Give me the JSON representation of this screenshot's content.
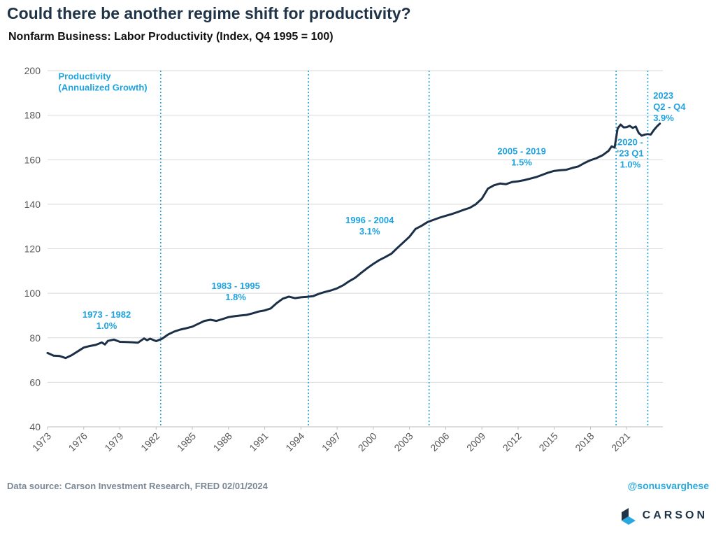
{
  "header": {
    "title": "Could there be another regime shift for productivity?",
    "subtitle": "Nonfarm Business: Labor Productivity (Index, Q4 1995 = 100)"
  },
  "footer": {
    "source": "Data source: Carson Investment Research, FRED   02/01/2024",
    "handle": "@sonusvarghese",
    "logo_text": "CARSON"
  },
  "colors": {
    "line": "#1b3048",
    "annotation": "#1fa3df",
    "grid": "#d9d9d9",
    "axis_text": "#595959"
  },
  "chart_data": {
    "type": "line",
    "ylim": [
      40,
      200
    ],
    "yticks": [
      40,
      60,
      80,
      100,
      120,
      140,
      160,
      180,
      200
    ],
    "xlim": [
      1973.0,
      2024.0
    ],
    "xticks": [
      "1973",
      "1976",
      "1979",
      "1982",
      "1985",
      "1988",
      "1991",
      "1994",
      "1997",
      "2000",
      "2003",
      "2006",
      "2009",
      "2012",
      "2015",
      "2018",
      "2021"
    ],
    "grid": "horizontal",
    "series": [
      {
        "x": [
          1973.0,
          1973.5,
          1974.0,
          1974.5,
          1975.0,
          1975.5,
          1976.0,
          1976.5,
          1977.0,
          1977.5,
          1977.75,
          1978.0,
          1978.5,
          1979.0,
          1979.5,
          1980.0,
          1980.5,
          1981.0,
          1981.25,
          1981.5,
          1982.0,
          1982.5,
          1983.0,
          1983.5,
          1984.0,
          1984.5,
          1985.0,
          1985.5,
          1986.0,
          1986.5,
          1987.0,
          1987.5,
          1988.0,
          1988.5,
          1989.0,
          1989.5,
          1990.0,
          1990.5,
          1991.0,
          1991.5,
          1992.0,
          1992.5,
          1993.0,
          1993.5,
          1994.0,
          1994.5,
          1995.0,
          1995.5,
          1996.0,
          1996.5,
          1997.0,
          1997.5,
          1998.0,
          1998.5,
          1999.0,
          1999.5,
          2000.0,
          2000.5,
          2001.0,
          2001.5,
          2002.0,
          2002.5,
          2003.0,
          2003.5,
          2004.0,
          2004.5,
          2005.0,
          2005.5,
          2006.0,
          2006.5,
          2007.0,
          2007.5,
          2008.0,
          2008.5,
          2009.0,
          2009.5,
          2010.0,
          2010.5,
          2011.0,
          2011.5,
          2012.0,
          2012.5,
          2013.0,
          2013.5,
          2014.0,
          2014.5,
          2015.0,
          2015.5,
          2016.0,
          2016.5,
          2017.0,
          2017.5,
          2018.0,
          2018.5,
          2019.0,
          2019.5,
          2019.75,
          2020.0,
          2020.25,
          2020.5,
          2020.75,
          2021.0,
          2021.25,
          2021.5,
          2021.75,
          2022.0,
          2022.25,
          2022.5,
          2022.75,
          2023.0,
          2023.25,
          2023.5,
          2023.75
        ],
        "y": [
          73.2,
          72.0,
          71.8,
          70.9,
          72.2,
          73.9,
          75.6,
          76.3,
          76.8,
          77.9,
          77.0,
          78.6,
          79.2,
          78.2,
          78.1,
          78.0,
          77.8,
          79.7,
          78.9,
          79.6,
          78.5,
          79.6,
          81.5,
          82.8,
          83.7,
          84.3,
          85.0,
          86.3,
          87.6,
          88.1,
          87.6,
          88.4,
          89.3,
          89.7,
          90.0,
          90.3,
          91.0,
          91.8,
          92.3,
          93.2,
          95.6,
          97.6,
          98.5,
          97.8,
          98.2,
          98.4,
          98.7,
          99.8,
          100.6,
          101.3,
          102.2,
          103.6,
          105.4,
          107.0,
          109.2,
          111.3,
          113.2,
          114.9,
          116.3,
          117.8,
          120.4,
          122.9,
          125.4,
          128.9,
          130.3,
          132.0,
          133.0,
          134.0,
          134.8,
          135.6,
          136.5,
          137.5,
          138.4,
          140.0,
          142.5,
          147.0,
          148.5,
          149.3,
          149.0,
          150.0,
          150.3,
          150.8,
          151.5,
          152.2,
          153.2,
          154.2,
          155.0,
          155.3,
          155.5,
          156.3,
          157.0,
          158.5,
          159.8,
          160.7,
          162.0,
          164.0,
          166.0,
          165.5,
          174.0,
          175.8,
          174.5,
          174.6,
          175.2,
          174.3,
          174.9,
          172.0,
          170.8,
          171.3,
          171.5,
          171.3,
          173.3,
          174.9,
          176.2
        ]
      }
    ],
    "regime_lines": [
      1982.375,
      1994.625,
      2004.625,
      2020.125,
      2022.75
    ],
    "annotations": [
      {
        "lines": [
          "Productivity",
          "(Annualized Growth)"
        ],
        "x": 1973.9,
        "y": 196,
        "anchor": "start"
      },
      {
        "lines": [
          "1973 - 1982",
          "1.0%"
        ],
        "x": 1977.9,
        "y": 89,
        "anchor": "middle"
      },
      {
        "lines": [
          "1983 - 1995",
          "1.8%"
        ],
        "x": 1988.6,
        "y": 102,
        "anchor": "middle"
      },
      {
        "lines": [
          "1996 - 2004",
          "3.1%"
        ],
        "x": 1999.7,
        "y": 131.5,
        "anchor": "middle"
      },
      {
        "lines": [
          "2005 - 2019",
          "1.5%"
        ],
        "x": 2012.3,
        "y": 162.5,
        "anchor": "middle"
      },
      {
        "lines": [
          "2020 -",
          "'23 Q1",
          "1.0%"
        ],
        "x": 2021.3,
        "y": 166.5,
        "anchor": "middle"
      },
      {
        "lines": [
          "2023",
          "Q2 - Q4",
          "3.9%"
        ],
        "x": 2023.2,
        "y": 187.5,
        "anchor": "start"
      }
    ]
  }
}
